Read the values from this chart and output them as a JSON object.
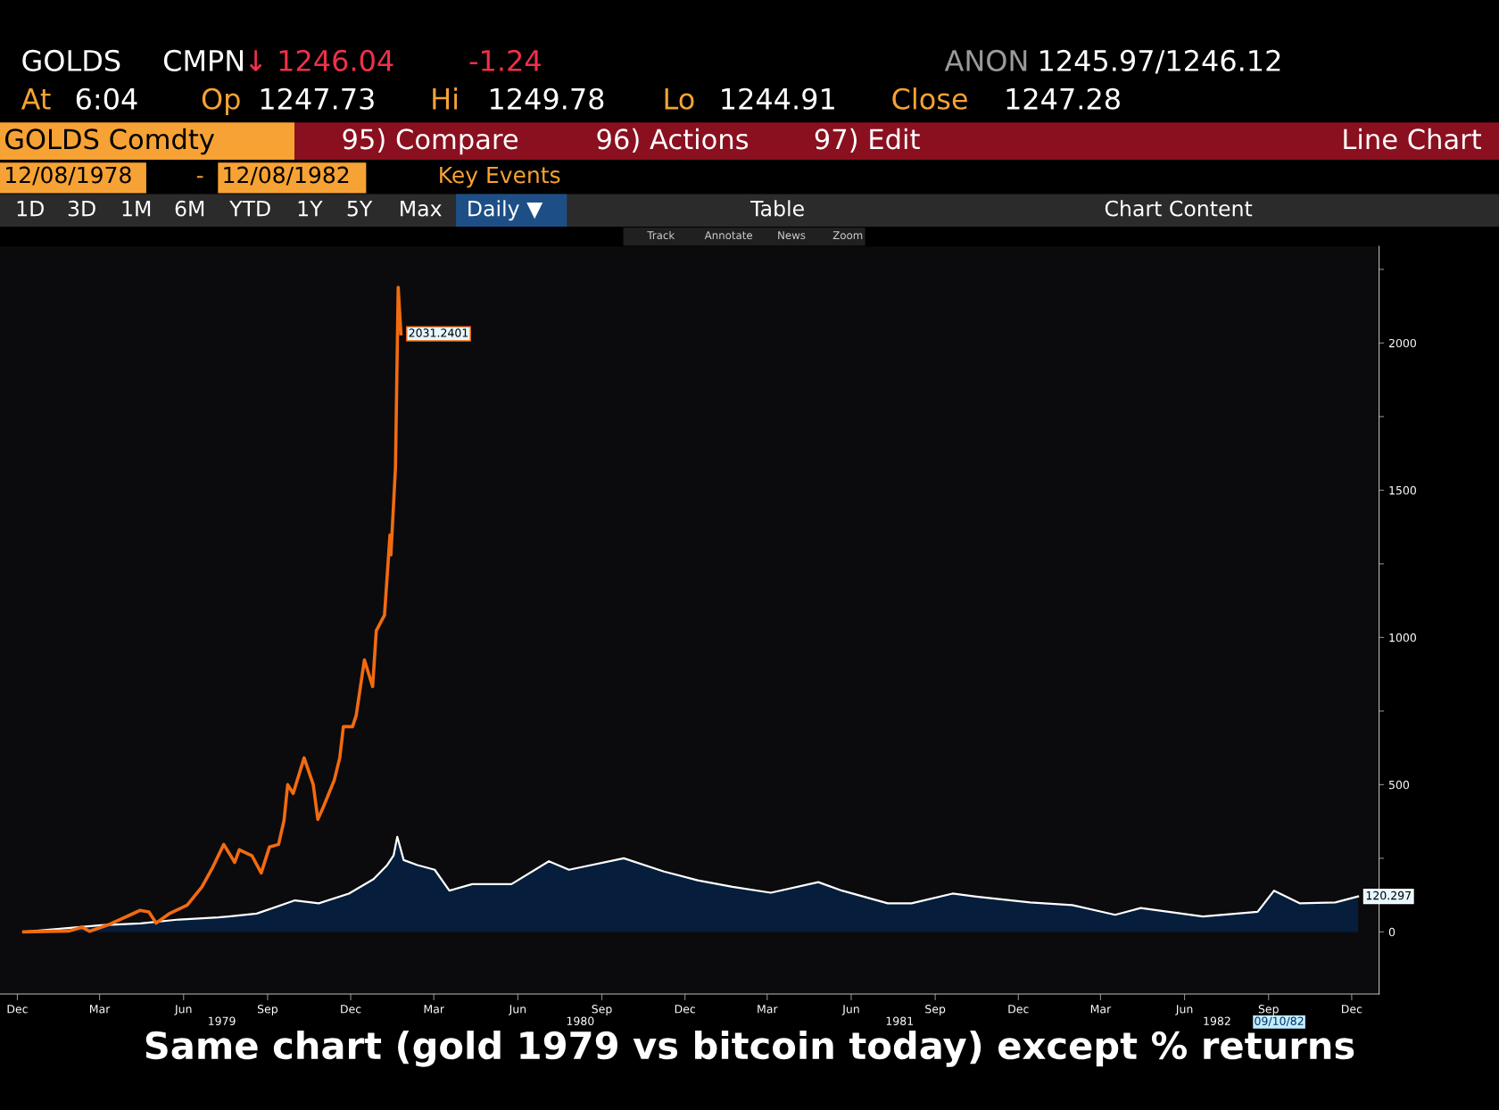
{
  "chart_data": {
    "type": "line",
    "title": "Same chart (gold 1979 vs bitcoin today) except % returns",
    "annotations": [
      "GOLDS",
      "CMPN",
      "↓ 1246.04",
      "-1.24",
      "ANON",
      "1245.97/1246.12",
      "At",
      "6:04",
      "Op",
      "1247.73",
      "Hi",
      "1249.78",
      "Lo",
      "1244.91",
      "Close",
      "1247.28",
      "GOLDS Comdty",
      "95) Compare",
      "96) Actions",
      "97) Edit",
      "Line Chart",
      "12/08/1978",
      "-",
      "12/08/1982",
      "Key Events",
      "1D",
      "3D",
      "1M",
      "6M",
      "YTD",
      "1Y",
      "5Y",
      "Max",
      "Daily ▼",
      "Table",
      "Chart Content",
      "Track",
      "Annotate",
      "News",
      "Zoom",
      "1979",
      "1980",
      "1981",
      "1982",
      "09/10/82"
    ],
    "series": [
      {
        "type": "area",
        "color": "#061d3b",
        "x": [
          "1978-12-08",
          "1979-03-03",
          "1979-04-15",
          "1979-05-27",
          "1979-07-09",
          "1979-08-20",
          "1979-10-01",
          "1979-10-27",
          "1979-11-29",
          "1979-12-26",
          "1980-01-10",
          "1980-01-17",
          "1980-01-21",
          "1980-01-28",
          "1980-02-12",
          "1980-03-02",
          "1980-03-18",
          "1980-04-12",
          "1980-05-25",
          "1980-07-05",
          "1980-07-27",
          "1980-09-25",
          "1980-11-08",
          "1980-12-15",
          "1981-01-22",
          "1981-03-05",
          "1981-04-26",
          "1981-05-22",
          "1981-07-11",
          "1981-08-06",
          "1981-09-20",
          "1981-10-16",
          "1981-12-14",
          "1982-01-29",
          "1982-03-17",
          "1982-04-14",
          "1982-06-21",
          "1982-08-20",
          "1982-09-07",
          "1982-10-05",
          "1982-11-13",
          "1982-12-08"
        ],
        "values": [
          0,
          23,
          29,
          42,
          49,
          62,
          107,
          97,
          130,
          179,
          227,
          260,
          323,
          244,
          227,
          211,
          140,
          162,
          162,
          240,
          211,
          250,
          205,
          175,
          153,
          133,
          169,
          140,
          97,
          97,
          130,
          120,
          100,
          91,
          58,
          81,
          52,
          68,
          140,
          97,
          100,
          120.297
        ],
        "value_labels": [
          null,
          null,
          null,
          null,
          null,
          null,
          null,
          null,
          null,
          null,
          null,
          null,
          null,
          null,
          null,
          null,
          null,
          null,
          null,
          null,
          null,
          null,
          null,
          null,
          null,
          null,
          null,
          null,
          null,
          null,
          null,
          null,
          null,
          null,
          null,
          null,
          null,
          null,
          null,
          null,
          null,
          "120.297"
        ]
      },
      {
        "color": "#f26b0f",
        "x": [
          "1978-12-08",
          "1979-01-27",
          "1979-02-10",
          "1979-02-18",
          "1979-03-13",
          "1979-04-06",
          "1979-04-14",
          "1979-04-24",
          "1979-05-02",
          "1979-05-16",
          "1979-06-05",
          "1979-06-21",
          "1979-07-03",
          "1979-07-15",
          "1979-07-27",
          "1979-08-01",
          "1979-08-15",
          "1979-08-25",
          "1979-09-03",
          "1979-09-13",
          "1979-09-19",
          "1979-09-23",
          "1979-09-29",
          "1979-10-11",
          "1979-10-21",
          "1979-10-26",
          "1979-11-01",
          "1979-11-13",
          "1979-11-19",
          "1979-11-23",
          "1979-12-03",
          "1979-12-07",
          "1979-12-16",
          "1979-12-25",
          "1979-12-29",
          "1980-01-07",
          "1980-01-13",
          "1980-01-14",
          "1980-01-19",
          "1980-01-22",
          "1980-01-25"
        ],
        "values": [
          0,
          3,
          16,
          2,
          27,
          61,
          73,
          68,
          30,
          61,
          91,
          152,
          220,
          297,
          236,
          279,
          258,
          200,
          288,
          297,
          379,
          500,
          470,
          591,
          500,
          382,
          424,
          515,
          591,
          697,
          697,
          735,
          924,
          833,
          1023,
          1076,
          1348,
          1280,
          1576,
          2189,
          2031.2401
        ],
        "value_labels": [
          null,
          null,
          null,
          null,
          null,
          null,
          null,
          null,
          null,
          null,
          null,
          null,
          null,
          null,
          null,
          null,
          null,
          null,
          null,
          null,
          null,
          null,
          null,
          null,
          null,
          null,
          null,
          null,
          null,
          null,
          null,
          null,
          null,
          null,
          null,
          null,
          null,
          null,
          null,
          null,
          "2031.2401"
        ]
      }
    ],
    "xlim": [
      "1978-11-12",
      "1982-12-31"
    ],
    "xticks": [
      {
        "value": "1978-12-01",
        "label": "Dec"
      },
      {
        "value": "1979-03-01",
        "label": "Mar"
      },
      {
        "value": "1979-06-01",
        "label": "Jun"
      },
      {
        "value": "1979-09-01",
        "label": "Sep"
      },
      {
        "value": "1979-12-01",
        "label": "Dec"
      },
      {
        "value": "1980-03-01",
        "label": "Mar"
      },
      {
        "value": "1980-06-01",
        "label": "Jun"
      },
      {
        "value": "1980-09-01",
        "label": "Sep"
      },
      {
        "value": "1980-12-01",
        "label": "Dec"
      },
      {
        "value": "1981-03-01",
        "label": "Mar"
      },
      {
        "value": "1981-06-01",
        "label": "Jun"
      },
      {
        "value": "1981-09-01",
        "label": "Sep"
      },
      {
        "value": "1981-12-01",
        "label": "Dec"
      },
      {
        "value": "1982-03-01",
        "label": "Mar"
      },
      {
        "value": "1982-06-01",
        "label": "Jun"
      },
      {
        "value": "1982-09-01",
        "label": "Sep"
      },
      {
        "value": "1982-12-01",
        "label": "Dec"
      }
    ],
    "ylim": [
      -211,
      2328
    ],
    "yticks": [
      0,
      {
        "value": 250,
        "label": null
      },
      500,
      {
        "value": 750,
        "label": null
      },
      1000,
      {
        "value": 1250,
        "label": null
      },
      1500,
      {
        "value": 1750,
        "label": null
      },
      2000,
      {
        "value": 2250,
        "label": null
      }
    ],
    "grid": false,
    "legend": false
  }
}
